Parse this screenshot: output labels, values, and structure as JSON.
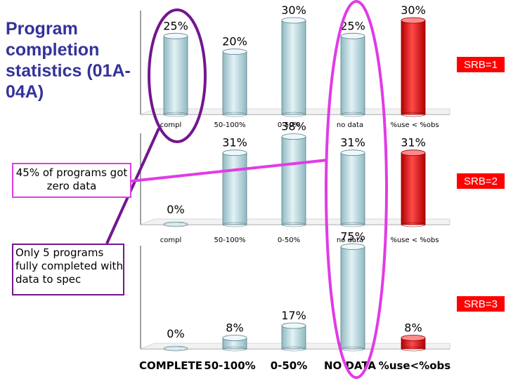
{
  "slide": {
    "title": "Program completion statistics (01A-04A)",
    "note_zero_data": "45% of programs got zero data",
    "note_completed": "Only 5 programs fully completed with data to spec"
  },
  "colors": {
    "bar_fill": "#b4d6dd",
    "bar_highlight": "#e21b1b",
    "title": "#33339a",
    "ellipse_purple": "#73168e",
    "ellipse_magenta": "#e13be6"
  },
  "chart_data": [
    {
      "type": "bar",
      "categories": [
        "compl",
        "50-100%",
        "0-50%",
        "no data",
        "%use < %obs"
      ],
      "values": [
        25,
        20,
        30,
        25,
        30
      ],
      "data_labels": [
        "25%",
        "20%",
        "30%",
        "25%",
        "30%"
      ],
      "series_label": "SRB=1",
      "highlight_index": 4,
      "ylim": [
        0,
        40
      ],
      "grid": false
    },
    {
      "type": "bar",
      "categories": [
        "compl",
        "50-100%",
        "0-50%",
        "no data",
        "%use < %obs"
      ],
      "values": [
        0,
        31,
        38,
        31,
        31
      ],
      "data_labels": [
        "0%",
        "31%",
        "38%",
        "31%",
        "31%"
      ],
      "series_label": "SRB=2",
      "highlight_index": 4,
      "ylim": [
        0,
        40
      ],
      "grid": false
    },
    {
      "type": "bar",
      "categories": [
        "COMPLETE",
        "50-100%",
        "0-50%",
        "NO DATA",
        "%use<%obs"
      ],
      "values": [
        0,
        8,
        17,
        75,
        8
      ],
      "data_labels": [
        "0%",
        "8%",
        "17%",
        "75%",
        "8%"
      ],
      "series_label": "SRB=3",
      "highlight_index": 4,
      "ylim": [
        0,
        75
      ],
      "grid": false
    }
  ]
}
